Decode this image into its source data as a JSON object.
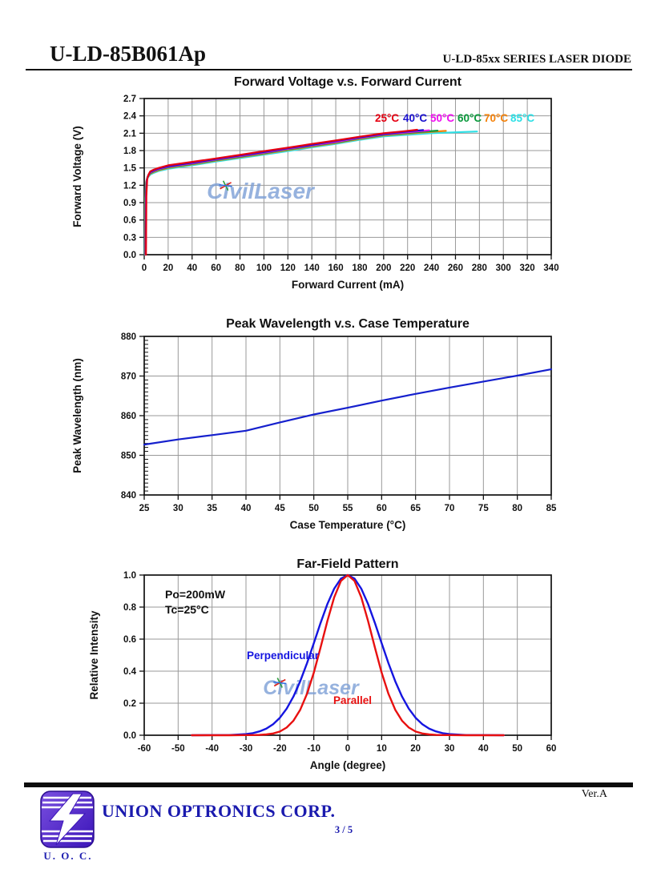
{
  "page": {
    "doc_title": "U-LD-85B061Ap",
    "doc_series": "U-LD-85xx SERIES LASER DIODE",
    "version": "Ver.A",
    "company": "UNION OPTRONICS CORP.",
    "page_number": "3 / 5",
    "logo_caption": "U. O. C."
  },
  "watermark": {
    "text": "CivilLaser",
    "color": "#7d9fd6"
  },
  "chart_data": [
    {
      "type": "line",
      "title": "Forward Voltage v.s. Forward Current",
      "xlabel": "Forward Current (mA)",
      "ylabel": "Forward Voltage (V)",
      "xlim": [
        0,
        340
      ],
      "ylim": [
        0,
        2.7
      ],
      "xticks": [
        0,
        20,
        40,
        60,
        80,
        100,
        120,
        140,
        160,
        180,
        200,
        220,
        240,
        260,
        280,
        300,
        320,
        340
      ],
      "xtick_labels": [
        "0",
        "20",
        "40",
        "60",
        "80",
        "100",
        "120",
        "140",
        "160",
        "180",
        "200",
        "220",
        "240",
        "260",
        "280",
        "300",
        "320",
        "340"
      ],
      "yticks": [
        0,
        0.3,
        0.6,
        0.9,
        1.2,
        1.5,
        1.8,
        2.1,
        2.4,
        2.7
      ],
      "ytick_labels": [
        "0.0",
        "0.3",
        "0.6",
        "0.9",
        "1.2",
        "1.5",
        "1.8",
        "2.1",
        "2.4",
        "2.7"
      ],
      "grid": "both",
      "legend": {
        "position": "inside-top-right",
        "items": [
          {
            "label": "25°C",
            "color": "#e60012"
          },
          {
            "label": "40°C",
            "color": "#1a10cf"
          },
          {
            "label": "50°C",
            "color": "#f010f0"
          },
          {
            "label": "60°C",
            "color": "#0a9a3c"
          },
          {
            "label": "70°C",
            "color": "#f5820a"
          },
          {
            "label": "85°C",
            "color": "#2ee0e6"
          }
        ]
      },
      "series": [
        {
          "name": "25°C",
          "color": "#e60012",
          "x": [
            1.5,
            1.8,
            2.5,
            3.5,
            5,
            8,
            12,
            20,
            40,
            60,
            80,
            100,
            120,
            140,
            160,
            180,
            200,
            215,
            228
          ],
          "y": [
            0,
            1.02,
            1.3,
            1.38,
            1.44,
            1.47,
            1.5,
            1.545,
            1.605,
            1.665,
            1.725,
            1.79,
            1.85,
            1.915,
            1.975,
            2.04,
            2.1,
            2.13,
            2.16
          ]
        },
        {
          "name": "40°C",
          "color": "#1a10cf",
          "x": [
            1.3,
            1.6,
            2.3,
            3.3,
            5,
            8,
            12,
            20,
            40,
            60,
            80,
            100,
            120,
            140,
            160,
            180,
            200,
            218,
            233
          ],
          "y": [
            0,
            1.01,
            1.29,
            1.37,
            1.43,
            1.46,
            1.49,
            1.53,
            1.59,
            1.655,
            1.715,
            1.775,
            1.84,
            1.9,
            1.965,
            2.03,
            2.09,
            2.125,
            2.155
          ]
        },
        {
          "name": "50°C",
          "color": "#f010f0",
          "x": [
            1.1,
            1.4,
            2.1,
            3.1,
            5,
            8,
            12,
            20,
            40,
            60,
            80,
            100,
            120,
            140,
            160,
            180,
            200,
            222,
            238
          ],
          "y": [
            0,
            1.0,
            1.28,
            1.36,
            1.42,
            1.45,
            1.48,
            1.52,
            1.58,
            1.645,
            1.705,
            1.765,
            1.83,
            1.89,
            1.95,
            2.02,
            2.08,
            2.12,
            2.15
          ]
        },
        {
          "name": "60°C",
          "color": "#0a9a3c",
          "x": [
            0.9,
            1.2,
            1.9,
            2.9,
            5,
            8,
            12,
            20,
            40,
            60,
            80,
            100,
            120,
            140,
            160,
            180,
            200,
            226,
            245
          ],
          "y": [
            0,
            0.99,
            1.27,
            1.35,
            1.41,
            1.44,
            1.47,
            1.51,
            1.57,
            1.635,
            1.695,
            1.755,
            1.82,
            1.88,
            1.94,
            2.01,
            2.07,
            2.115,
            2.145
          ]
        },
        {
          "name": "70°C",
          "color": "#f5820a",
          "x": [
            0.7,
            1.0,
            1.7,
            2.7,
            5,
            8,
            12,
            20,
            40,
            60,
            80,
            100,
            120,
            140,
            160,
            180,
            200,
            230,
            252
          ],
          "y": [
            0,
            0.98,
            1.26,
            1.34,
            1.4,
            1.43,
            1.46,
            1.5,
            1.56,
            1.625,
            1.685,
            1.745,
            1.81,
            1.87,
            1.93,
            2.0,
            2.06,
            2.11,
            2.14
          ]
        },
        {
          "name": "85°C",
          "color": "#2ee0e6",
          "x": [
            0.5,
            0.8,
            1.5,
            2.5,
            5,
            8,
            12,
            20,
            40,
            60,
            80,
            100,
            120,
            140,
            160,
            180,
            200,
            240,
            278
          ],
          "y": [
            0,
            0.97,
            1.24,
            1.32,
            1.385,
            1.415,
            1.445,
            1.485,
            1.545,
            1.61,
            1.67,
            1.73,
            1.79,
            1.855,
            1.915,
            1.985,
            2.045,
            2.1,
            2.13
          ]
        }
      ]
    },
    {
      "type": "line",
      "title": "Peak Wavelength v.s. Case Temperature",
      "xlabel": "Case Temperature (°C)",
      "ylabel": "Peak Wavelength (nm)",
      "xlim": [
        25,
        85
      ],
      "ylim": [
        840,
        880
      ],
      "xticks": [
        25,
        30,
        35,
        40,
        45,
        50,
        55,
        60,
        65,
        70,
        75,
        80,
        85
      ],
      "xtick_labels": [
        "25",
        "30",
        "35",
        "40",
        "45",
        "50",
        "55",
        "60",
        "65",
        "70",
        "75",
        "80",
        "85"
      ],
      "yticks": [
        840,
        850,
        860,
        870,
        880
      ],
      "ytick_labels": [
        "840",
        "850",
        "860",
        "870",
        "880"
      ],
      "ytick_minor_step": 1,
      "grid_y": [
        850,
        860,
        870
      ],
      "series": [
        {
          "name": "Peak Wavelength",
          "color": "#1520cd",
          "x": [
            25,
            30,
            35,
            40,
            45,
            50,
            55,
            60,
            65,
            70,
            75,
            80,
            85
          ],
          "y": [
            852.7,
            854.0,
            855.1,
            856.2,
            858.3,
            860.3,
            862.0,
            863.8,
            865.5,
            867.1,
            868.6,
            870.1,
            871.7
          ]
        }
      ]
    },
    {
      "type": "line",
      "title": "Far-Field Pattern",
      "xlabel": "Angle (degree)",
      "ylabel": "Relative Intensity",
      "xlim": [
        -60,
        60
      ],
      "ylim": [
        0,
        1.0
      ],
      "xticks": [
        -60,
        -50,
        -40,
        -30,
        -20,
        -10,
        0,
        10,
        20,
        30,
        40,
        50,
        60
      ],
      "xtick_labels": [
        "-60",
        "-50",
        "-40",
        "-30",
        "-20",
        "-10",
        "0",
        "10",
        "20",
        "30",
        "40",
        "50",
        "60"
      ],
      "yticks": [
        0,
        0.2,
        0.4,
        0.6,
        0.8,
        1.0
      ],
      "ytick_labels": [
        "0.0",
        "0.2",
        "0.4",
        "0.6",
        "0.8",
        "1.0"
      ],
      "annotations": [
        "Po=200mW",
        "Tc=25°C"
      ],
      "series": [
        {
          "name": "Parallel",
          "color": "#e81010",
          "x": [
            -46,
            -40,
            -35,
            -30,
            -28,
            -26,
            -24,
            -22,
            -20,
            -18,
            -16,
            -14,
            -12,
            -10,
            -8,
            -6,
            -4,
            -2,
            0,
            2,
            4,
            6,
            8,
            10,
            12,
            14,
            16,
            18,
            20,
            22,
            24,
            26,
            28,
            30,
            35,
            40,
            46
          ],
          "y": [
            0,
            0,
            0,
            0.001,
            0.001,
            0.002,
            0.005,
            0.011,
            0.023,
            0.048,
            0.091,
            0.159,
            0.259,
            0.391,
            0.548,
            0.713,
            0.861,
            0.963,
            1,
            0.963,
            0.861,
            0.713,
            0.548,
            0.391,
            0.259,
            0.159,
            0.091,
            0.048,
            0.023,
            0.011,
            0.005,
            0.002,
            0.001,
            0.001,
            0,
            0,
            0
          ]
        },
        {
          "name": "Perpendicular",
          "color": "#1515e0",
          "x": [
            -46,
            -40,
            -35,
            -30,
            -28,
            -26,
            -24,
            -22,
            -20,
            -18,
            -16,
            -14,
            -12,
            -10,
            -8,
            -6,
            -4,
            -2,
            0,
            2,
            4,
            6,
            8,
            10,
            12,
            14,
            16,
            18,
            20,
            22,
            24,
            26,
            28,
            30,
            35,
            40,
            46
          ],
          "y": [
            0,
            0.001,
            0.001,
            0.007,
            0.013,
            0.024,
            0.041,
            0.069,
            0.109,
            0.166,
            0.242,
            0.337,
            0.45,
            0.575,
            0.701,
            0.819,
            0.915,
            0.978,
            1,
            0.978,
            0.915,
            0.819,
            0.701,
            0.575,
            0.45,
            0.337,
            0.242,
            0.166,
            0.109,
            0.069,
            0.041,
            0.024,
            0.013,
            0.007,
            0.001,
            0.001,
            0
          ]
        }
      ]
    }
  ]
}
